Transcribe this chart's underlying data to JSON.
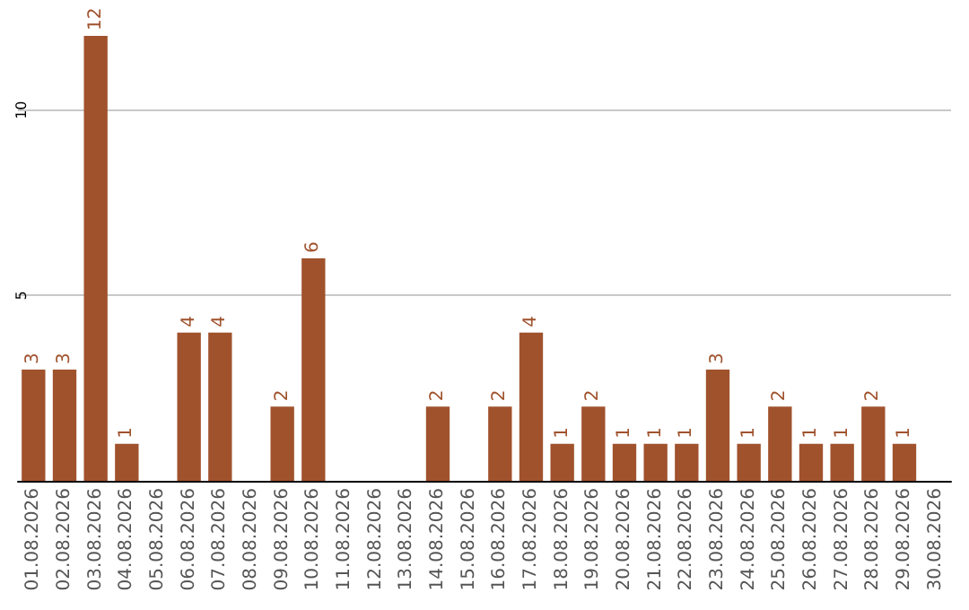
{
  "chart_data": {
    "type": "bar",
    "categories": [
      "01.08.2026",
      "02.08.2026",
      "03.08.2026",
      "04.08.2026",
      "05.08.2026",
      "06.08.2026",
      "07.08.2026",
      "08.08.2026",
      "09.08.2026",
      "10.08.2026",
      "11.08.2026",
      "12.08.2026",
      "13.08.2026",
      "14.08.2026",
      "15.08.2026",
      "16.08.2026",
      "17.08.2026",
      "18.08.2026",
      "19.08.2026",
      "20.08.2026",
      "21.08.2026",
      "22.08.2026",
      "23.08.2026",
      "24.08.2026",
      "25.08.2026",
      "26.08.2026",
      "27.08.2026",
      "28.08.2026",
      "29.08.2026",
      "30.08.2026"
    ],
    "values": [
      3,
      3,
      12,
      1,
      0,
      4,
      4,
      0,
      2,
      6,
      0,
      0,
      0,
      2,
      0,
      2,
      4,
      1,
      2,
      1,
      1,
      1,
      3,
      1,
      2,
      1,
      1,
      2,
      1,
      0
    ],
    "value_labels": [
      "3",
      "3",
      "12",
      "1",
      null,
      "4",
      "4",
      null,
      "2",
      "6",
      null,
      null,
      null,
      "2",
      null,
      "2",
      "4",
      "1",
      "2",
      "1",
      "1",
      "1",
      "3",
      "1",
      "2",
      "1",
      "1",
      "2",
      "1",
      null
    ],
    "color": "#a0522d",
    "ylim": [
      0,
      12
    ],
    "yticks": [
      {
        "value": 0,
        "label": null
      },
      5,
      10
    ],
    "grid": "y"
  }
}
